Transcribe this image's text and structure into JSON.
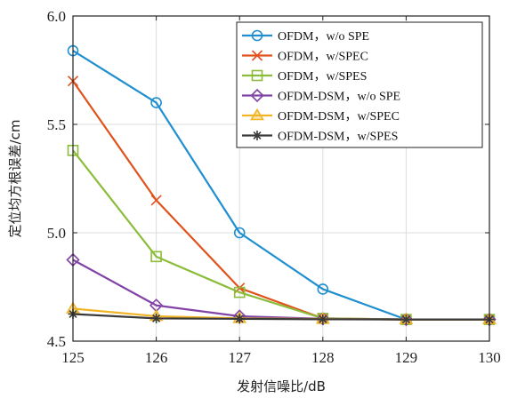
{
  "chart_data": {
    "type": "line",
    "xlabel": "发射信噪比/dB",
    "ylabel": "定位均方根误差/cm",
    "xlim": [
      125,
      130
    ],
    "ylim": [
      4.5,
      6.0
    ],
    "x_ticks": [
      125,
      126,
      127,
      128,
      129,
      130
    ],
    "y_ticks": [
      4.5,
      5.0,
      5.5,
      6.0
    ],
    "x_tick_labels": [
      "125",
      "126",
      "127",
      "128",
      "129",
      "130"
    ],
    "y_tick_labels": [
      "4.5",
      "5.0",
      "5.5",
      "6.0"
    ],
    "grid": true,
    "legend_position": "top-right",
    "x": [
      125,
      126,
      127,
      128,
      129,
      130
    ],
    "series": [
      {
        "name": "OFDM，w/o SPE",
        "values": [
          5.84,
          5.6,
          5.0,
          4.74,
          4.6,
          4.6
        ],
        "color": "#1f8fcf",
        "marker": "circle"
      },
      {
        "name": "OFDM，w/SPEC",
        "values": [
          5.7,
          5.15,
          4.745,
          4.605,
          4.6,
          4.6
        ],
        "color": "#e0531d",
        "marker": "x"
      },
      {
        "name": "OFDM，w/SPES",
        "values": [
          5.38,
          4.89,
          4.725,
          4.605,
          4.6,
          4.6
        ],
        "color": "#8cbd3a",
        "marker": "square"
      },
      {
        "name": "OFDM-DSM，w/o SPE",
        "values": [
          4.875,
          4.665,
          4.615,
          4.603,
          4.6,
          4.6
        ],
        "color": "#8243a6",
        "marker": "diamond"
      },
      {
        "name": "OFDM-DSM，w/SPEC",
        "values": [
          4.65,
          4.615,
          4.605,
          4.602,
          4.6,
          4.6
        ],
        "color": "#f1b425",
        "marker": "triangle"
      },
      {
        "name": "OFDM-DSM，w/SPES",
        "values": [
          4.625,
          4.605,
          4.603,
          4.601,
          4.6,
          4.6
        ],
        "color": "#3a3a3a",
        "marker": "asterisk"
      }
    ]
  }
}
